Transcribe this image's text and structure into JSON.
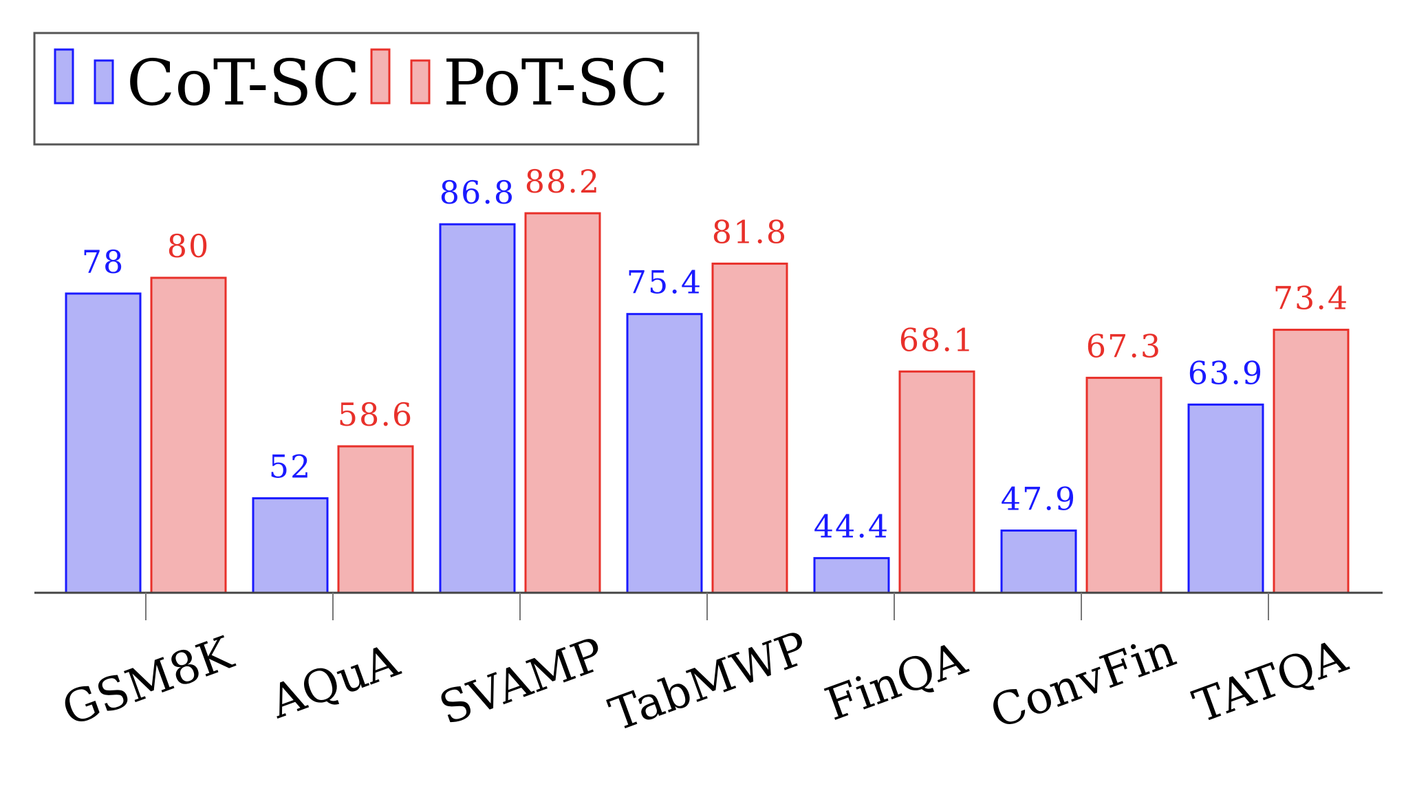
{
  "chart_data": {
    "type": "bar",
    "title": "",
    "xlabel": "",
    "ylabel": "",
    "ylim": [
      40,
      90
    ],
    "grid": false,
    "legend_position": "top-left",
    "categories": [
      "GSM8K",
      "AQuA",
      "SVAMP",
      "TabMWP",
      "FinQA",
      "ConvFin",
      "TATQA"
    ],
    "series": [
      {
        "name": "CoT-SC",
        "values": [
          78,
          52,
          86.8,
          75.4,
          44.4,
          47.9,
          63.9
        ],
        "fill": "#b3b3f7",
        "stroke": "#1a1aff",
        "label_color": "#1a1aff"
      },
      {
        "name": "PoT-SC",
        "values": [
          80,
          58.6,
          88.2,
          81.8,
          68.1,
          67.3,
          73.4
        ],
        "fill": "#f4b3b3",
        "stroke": "#e8302a",
        "label_color": "#e8302a"
      }
    ],
    "value_labels": [
      [
        "78",
        "52",
        "86.8",
        "75.4",
        "44.4",
        "47.9",
        "63.9"
      ],
      [
        "80",
        "58.6",
        "88.2",
        "81.8",
        "68.1",
        "67.3",
        "73.4"
      ]
    ]
  }
}
